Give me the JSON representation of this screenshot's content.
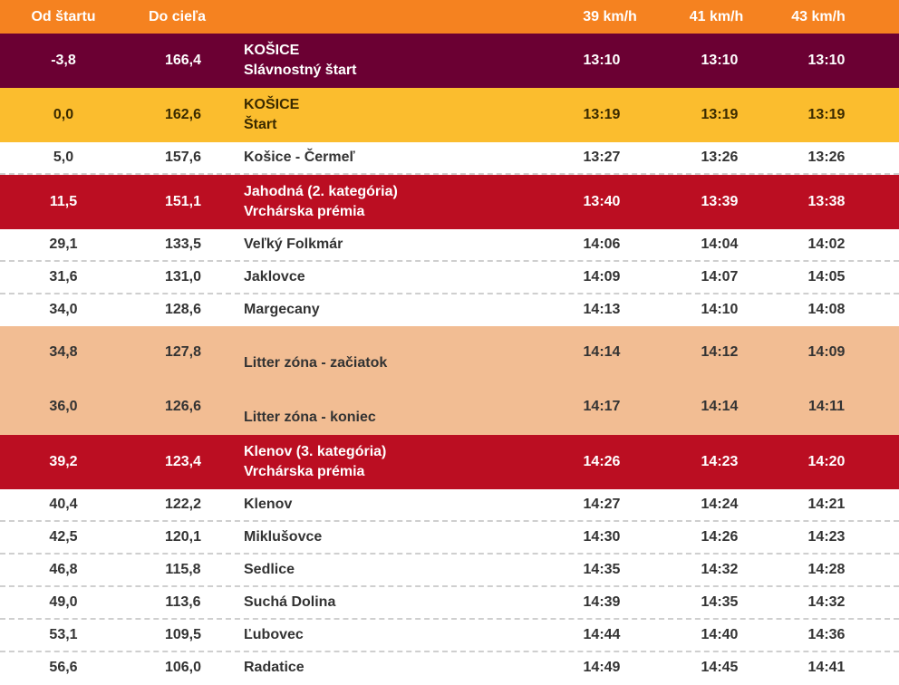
{
  "headers": {
    "from_start": "Od štartu",
    "to_finish": "Do cieľa",
    "place": "",
    "speed1": "39 km/h",
    "speed2": "41 km/h",
    "speed3": "43 km/h"
  },
  "colors": {
    "header": "#f58220",
    "ceremonial_start": "#6b0033",
    "start": "#fbbd2e",
    "mountain_prize": "#bb0e22",
    "litter_zone": "#f2bd93"
  },
  "rows": [
    {
      "from": "-3,8",
      "to": "166,4",
      "place": "KOŠICE",
      "note": "Slávnostný štart",
      "t1": "13:10",
      "t2": "13:10",
      "t3": "13:10"
    },
    {
      "from": "0,0",
      "to": "162,6",
      "place": "KOŠICE",
      "note": "Štart",
      "t1": "13:19",
      "t2": "13:19",
      "t3": "13:19"
    },
    {
      "from": "5,0",
      "to": "157,6",
      "place": "Košice - Čermeľ",
      "t1": "13:27",
      "t2": "13:26",
      "t3": "13:26"
    },
    {
      "from": "11,5",
      "to": "151,1",
      "place": "Jahodná (2. kategória)",
      "note": "Vrchárska prémia",
      "t1": "13:40",
      "t2": "13:39",
      "t3": "13:38"
    },
    {
      "from": "29,1",
      "to": "133,5",
      "place": "Veľký Folkmár",
      "t1": "14:06",
      "t2": "14:04",
      "t3": "14:02"
    },
    {
      "from": "31,6",
      "to": "131,0",
      "place": "Jaklovce",
      "t1": "14:09",
      "t2": "14:07",
      "t3": "14:05"
    },
    {
      "from": "34,0",
      "to": "128,6",
      "place": "Margecany",
      "t1": "14:13",
      "t2": "14:10",
      "t3": "14:08"
    },
    {
      "from": "34,8",
      "to": "127,8",
      "place": "Litter zóna - začiatok",
      "t1": "14:14",
      "t2": "14:12",
      "t3": "14:09"
    },
    {
      "from": "36,0",
      "to": "126,6",
      "place": "Litter zóna - koniec",
      "t1": "14:17",
      "t2": "14:14",
      "t3": "14:11"
    },
    {
      "from": "39,2",
      "to": "123,4",
      "place": "Klenov (3. kategória)",
      "note": "Vrchárska prémia",
      "t1": "14:26",
      "t2": "14:23",
      "t3": "14:20"
    },
    {
      "from": "40,4",
      "to": "122,2",
      "place": "Klenov",
      "t1": "14:27",
      "t2": "14:24",
      "t3": "14:21"
    },
    {
      "from": "42,5",
      "to": "120,1",
      "place": "Miklušovce",
      "t1": "14:30",
      "t2": "14:26",
      "t3": "14:23"
    },
    {
      "from": "46,8",
      "to": "115,8",
      "place": "Sedlice",
      "t1": "14:35",
      "t2": "14:32",
      "t3": "14:28"
    },
    {
      "from": "49,0",
      "to": "113,6",
      "place": "Suchá Dolina",
      "t1": "14:39",
      "t2": "14:35",
      "t3": "14:32"
    },
    {
      "from": "53,1",
      "to": "109,5",
      "place": "Ľubovec",
      "t1": "14:44",
      "t2": "14:40",
      "t3": "14:36"
    },
    {
      "from": "56,6",
      "to": "106,0",
      "place": "Radatice",
      "t1": "14:49",
      "t2": "14:45",
      "t3": "14:41"
    }
  ]
}
